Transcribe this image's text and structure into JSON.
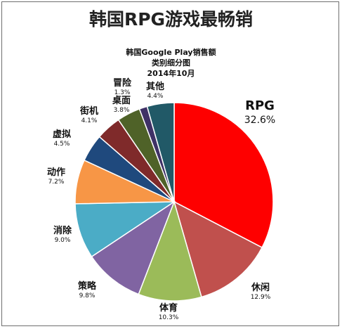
{
  "title": "韩国RPG游戏最畅销",
  "subtitle_lines": [
    "韩国Google Play销售额",
    "类别细分图",
    "2014年10月"
  ],
  "chart_data": {
    "type": "pie",
    "title": "韩国RPG游戏最畅销",
    "slices": [
      {
        "label": "RPG",
        "value": 32.6,
        "value_label": "32.6%",
        "color": "#fe0000"
      },
      {
        "label": "休闲",
        "value": 12.9,
        "value_label": "12.9%",
        "color": "#c0504d"
      },
      {
        "label": "体育",
        "value": 10.3,
        "value_label": "10.3%",
        "color": "#9bbb59"
      },
      {
        "label": "策略",
        "value": 9.8,
        "value_label": "9.8%",
        "color": "#8064a2"
      },
      {
        "label": "消除",
        "value": 9.0,
        "value_label": "9.0%",
        "color": "#4bacc6"
      },
      {
        "label": "动作",
        "value": 7.2,
        "value_label": "7.2%",
        "color": "#f79646"
      },
      {
        "label": "虚拟",
        "value": 4.5,
        "value_label": "4.5%",
        "color": "#1f497d"
      },
      {
        "label": "街机",
        "value": 4.1,
        "value_label": "4.1%",
        "color": "#7f2a2a"
      },
      {
        "label": "桌面",
        "value": 3.8,
        "value_label": "3.8%",
        "color": "#4f6228"
      },
      {
        "label": "冒险",
        "value": 1.3,
        "value_label": "1.3%",
        "color": "#3f3166"
      },
      {
        "label": "其他",
        "value": 4.4,
        "value_label": "4.4%",
        "color": "#215967"
      }
    ]
  }
}
